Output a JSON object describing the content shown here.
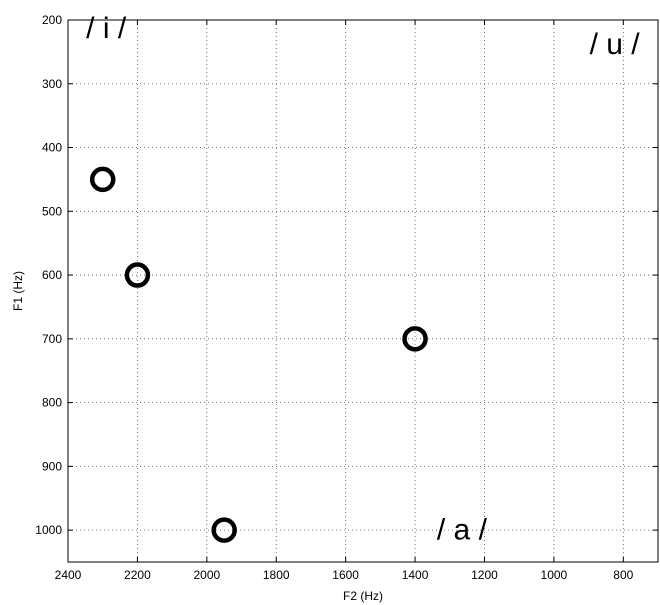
{
  "chart_data": {
    "type": "scatter",
    "xlabel": "F2 (Hz)",
    "ylabel": "F1 (Hz)",
    "xlim": [
      2400,
      700
    ],
    "ylim": [
      200,
      1050
    ],
    "x_reversed": true,
    "y_reversed": true,
    "grid": true,
    "xticks": [
      2400,
      2200,
      2000,
      1800,
      1600,
      1400,
      1200,
      1000,
      800
    ],
    "yticks": [
      200,
      300,
      400,
      500,
      600,
      700,
      800,
      900,
      1000
    ],
    "points": [
      {
        "x": 2300,
        "y": 450
      },
      {
        "x": 2200,
        "y": 600
      },
      {
        "x": 1400,
        "y": 700
      },
      {
        "x": 1950,
        "y": 1000
      }
    ],
    "marker": "open circle",
    "annotations": [
      {
        "text": "/ i /",
        "x": 2290,
        "y": 228
      },
      {
        "text": "/ u /",
        "x": 825,
        "y": 253
      },
      {
        "text": "/ a /",
        "x": 1265,
        "y": 1015
      }
    ]
  }
}
